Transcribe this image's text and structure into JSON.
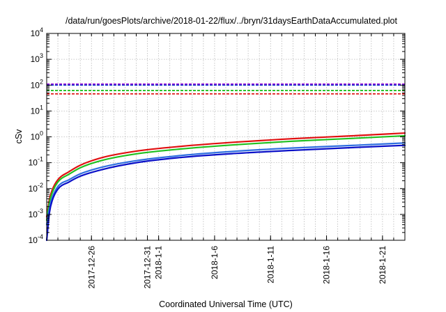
{
  "chart_data": {
    "type": "line",
    "title": "/data/run/goesPlots/archive/2018-01-22/flux/../bryn/31daysEarthDataAccumulated.plot",
    "xlabel": "Coordinated Universal Time (UTC)",
    "ylabel": "cSv",
    "x_range": [
      "2017-12-22",
      "2018-01-23"
    ],
    "ylim": [
      0.0001,
      10000
    ],
    "yscale": "log",
    "grid": true,
    "x_ticks": [
      "2017-12-26",
      "2017-12-31",
      "2018-1-1",
      "2018-1-6",
      "2018-1-11",
      "2018-1-16",
      "2018-1-21"
    ],
    "y_ticks": [
      {
        "value": 0.0001,
        "base": "10",
        "exp": "-4"
      },
      {
        "value": 0.001,
        "base": "10",
        "exp": "-3"
      },
      {
        "value": 0.01,
        "base": "10",
        "exp": "-2"
      },
      {
        "value": 0.1,
        "base": "10",
        "exp": "-1"
      },
      {
        "value": 1,
        "base": "10",
        "exp": "0"
      },
      {
        "value": 10,
        "base": "10",
        "exp": "1"
      },
      {
        "value": 100,
        "base": "10",
        "exp": "2"
      },
      {
        "value": 1000,
        "base": "10",
        "exp": "3"
      },
      {
        "value": 10000,
        "base": "10",
        "exp": "4"
      }
    ],
    "thresholds": [
      {
        "value": 110,
        "color": "#9400d3"
      },
      {
        "value": 100,
        "color": "#1f3fd0"
      },
      {
        "value": 62,
        "color": "#20c020"
      },
      {
        "value": 46,
        "color": "#e01010"
      }
    ],
    "series": [
      {
        "color": "#e01010",
        "x": [
          "2017-12-22",
          "2017-12-22 06:00",
          "2017-12-22 12:00",
          "2017-12-23",
          "2017-12-24",
          "2017-12-25",
          "2017-12-27",
          "2017-12-30",
          "2018-01-03",
          "2018-01-08",
          "2018-01-13",
          "2018-01-18",
          "2018-01-23"
        ],
        "values": [
          0.0008,
          0.004,
          0.009,
          0.022,
          0.045,
          0.08,
          0.16,
          0.28,
          0.43,
          0.63,
          0.85,
          1.08,
          1.4
        ]
      },
      {
        "color": "#20c020",
        "x": [
          "2017-12-22",
          "2017-12-22 06:00",
          "2017-12-22 12:00",
          "2017-12-23",
          "2017-12-24",
          "2017-12-25",
          "2017-12-27",
          "2017-12-30",
          "2018-01-03",
          "2018-01-08",
          "2018-01-13",
          "2018-01-18",
          "2018-01-23"
        ],
        "values": [
          0.0006,
          0.003,
          0.007,
          0.018,
          0.036,
          0.064,
          0.125,
          0.22,
          0.34,
          0.5,
          0.68,
          0.86,
          1.1
        ]
      },
      {
        "color": "#2f6fe0",
        "x": [
          "2017-12-22",
          "2017-12-22 06:00",
          "2017-12-22 12:00",
          "2017-12-23",
          "2017-12-24",
          "2017-12-25",
          "2017-12-27",
          "2017-12-30",
          "2018-01-03",
          "2018-01-08",
          "2018-01-13",
          "2018-01-18",
          "2018-01-23"
        ],
        "values": [
          0.0004,
          0.0018,
          0.0045,
          0.012,
          0.022,
          0.037,
          0.068,
          0.12,
          0.19,
          0.28,
          0.37,
          0.46,
          0.58
        ]
      },
      {
        "color": "#0a10c8",
        "x": [
          "2017-12-22",
          "2017-12-22 06:00",
          "2017-12-22 12:00",
          "2017-12-23",
          "2017-12-24",
          "2017-12-25",
          "2017-12-27",
          "2017-12-30",
          "2018-01-03",
          "2018-01-08",
          "2018-01-13",
          "2018-01-18",
          "2018-01-23"
        ],
        "values": [
          0.0001,
          0.0012,
          0.0035,
          0.0095,
          0.018,
          0.03,
          0.055,
          0.1,
          0.16,
          0.23,
          0.3,
          0.38,
          0.47
        ]
      }
    ]
  }
}
